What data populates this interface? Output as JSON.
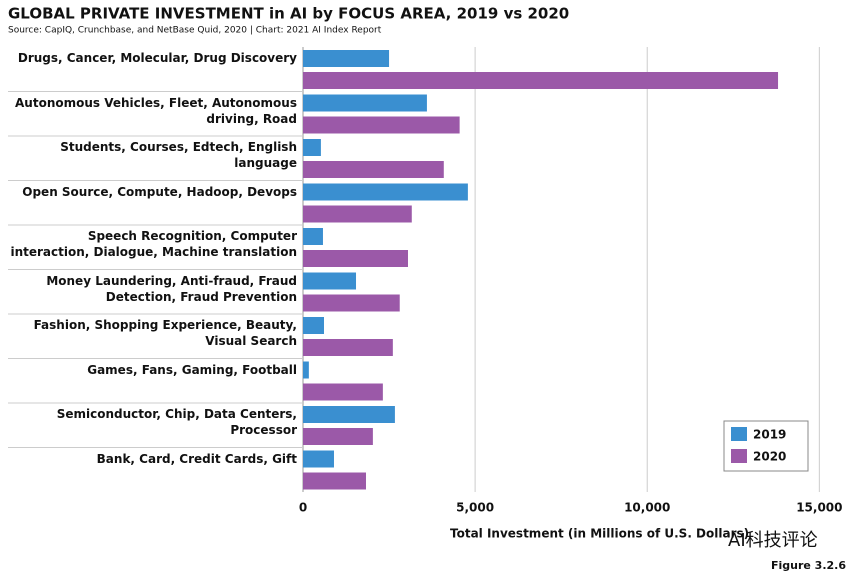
{
  "chart_data": {
    "type": "bar",
    "orientation": "horizontal",
    "title": "GLOBAL PRIVATE INVESTMENT in AI by FOCUS AREA, 2019 vs 2020",
    "subtitle": "Source: CapIQ, Crunchbase, and NetBase Quid, 2020 | Chart: 2021 AI Index Report",
    "x_label": "Total Investment (in Millions of U.S. Dollars)",
    "figure_label": "Figure 3.2.6",
    "watermark": "AI科技评论",
    "categories": [
      "Drugs, Cancer, Molecular, Drug Discovery",
      "Autonomous Vehicles, Fleet, Autonomous driving, Road",
      "Students, Courses, Edtech, English language",
      "Open Source, Compute, Hadoop, Devops",
      "Speech Recognition, Computer interaction, Dialogue, Machine translation",
      "Money Laundering, Anti-fraud, Fraud Detection, Fraud Prevention",
      "Fashion, Shopping Experience, Beauty, Visual Search",
      "Games, Fans, Gaming, Football",
      "Semiconductor, Chip, Data Centers, Processor",
      "Bank, Card, Credit Cards, Gift"
    ],
    "series": [
      {
        "name": "2019",
        "color": "#3a8fd0",
        "values": [
          2500,
          3600,
          520,
          4790,
          580,
          1540,
          610,
          170,
          2670,
          900
        ]
      },
      {
        "name": "2020",
        "color": "#9b59a8",
        "values": [
          13800,
          4550,
          4090,
          3160,
          3050,
          2810,
          2610,
          2320,
          2030,
          1830
        ]
      }
    ],
    "xlim": [
      0,
      15600
    ],
    "xticks": [
      0,
      {
        "value": 5000,
        "label": "5,000"
      },
      {
        "value": 10000,
        "label": "10,000"
      },
      {
        "value": 15000,
        "label": "15,000"
      }
    ],
    "grid": true,
    "legend": "lower right"
  }
}
